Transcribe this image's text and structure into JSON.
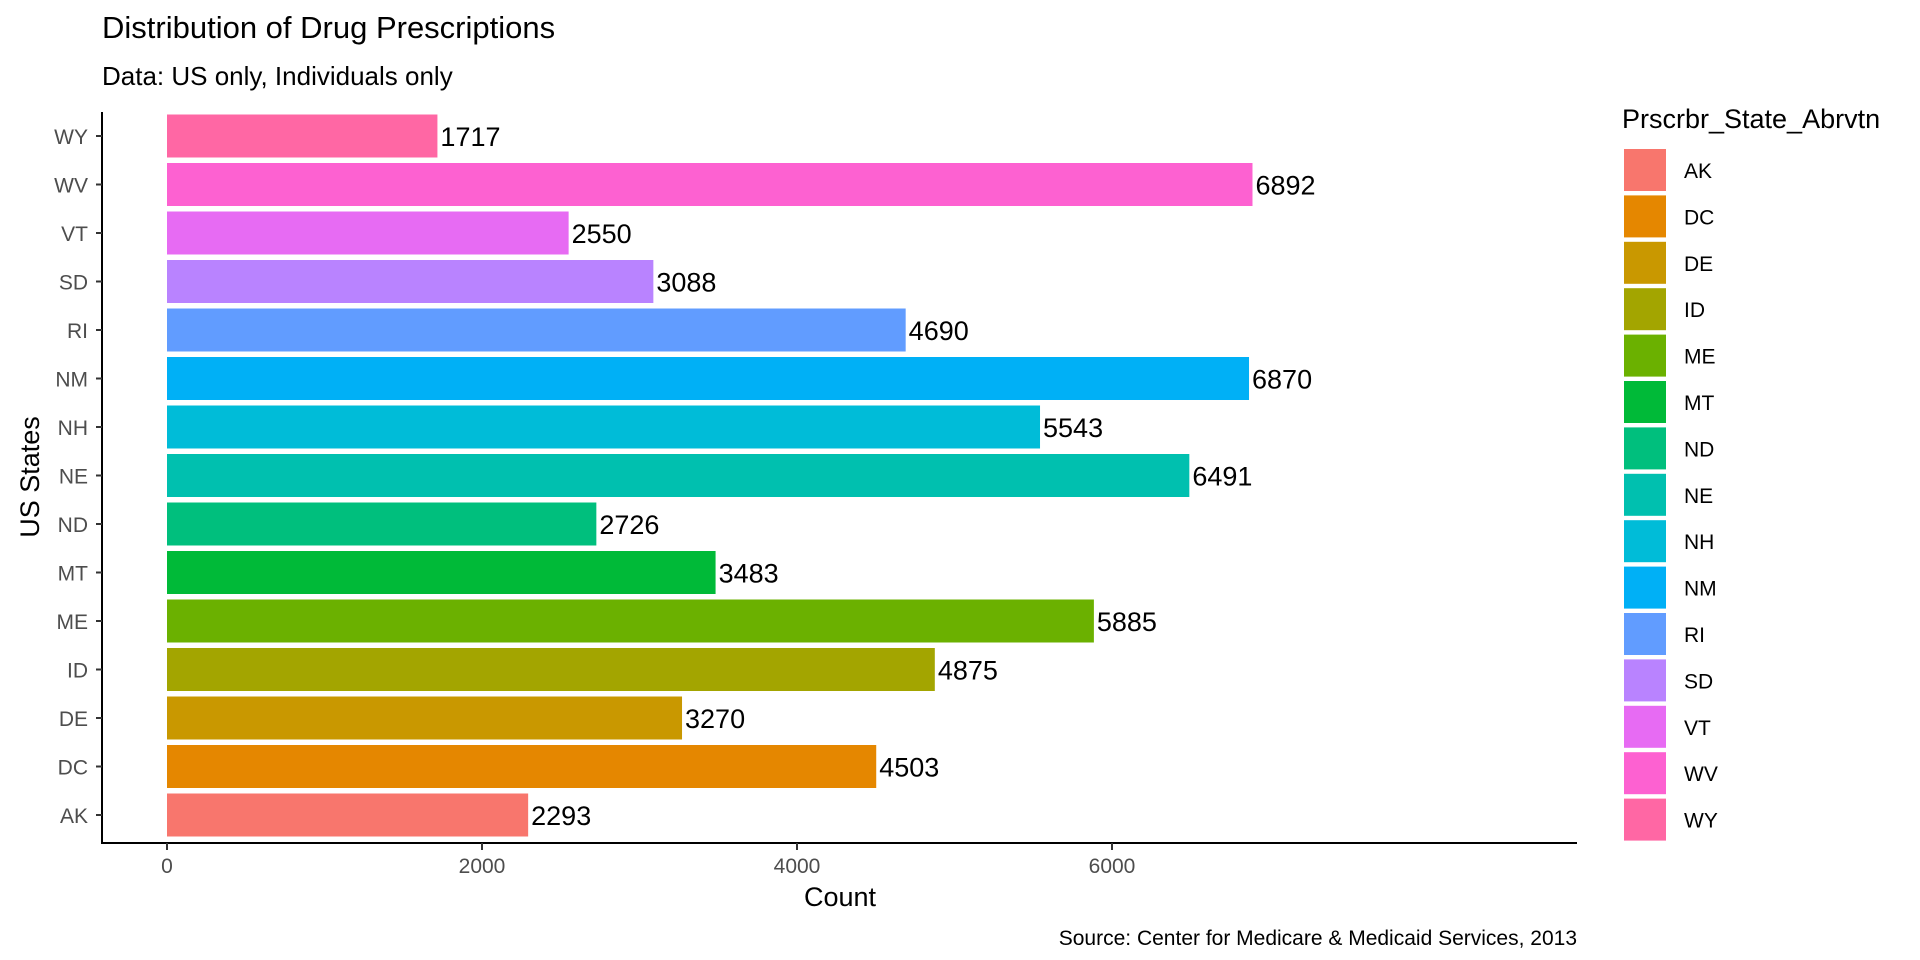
{
  "chart_data": {
    "type": "bar",
    "orientation": "horizontal",
    "title": "Distribution of Drug Prescriptions",
    "subtitle": "Data: US only, Individuals only",
    "caption": "Source: Center for Medicare & Medicaid Services, 2013",
    "xlabel": "Count",
    "ylabel": "US States",
    "xlim": [
      0,
      7200
    ],
    "x_ticks": [
      0,
      2000,
      4000,
      6000
    ],
    "grid": false,
    "legend_position": "right",
    "categories": [
      "AK",
      "DC",
      "DE",
      "ID",
      "ME",
      "MT",
      "ND",
      "NE",
      "NH",
      "NM",
      "RI",
      "SD",
      "VT",
      "WV",
      "WY"
    ],
    "values": [
      2293,
      4503,
      3270,
      4875,
      5885,
      3483,
      2726,
      6491,
      5543,
      6870,
      4690,
      3088,
      2550,
      6892,
      1717
    ],
    "colors": [
      "#F8766D",
      "#E58700",
      "#C99800",
      "#A3A500",
      "#6BB100",
      "#00BA38",
      "#00BF7D",
      "#00C0AF",
      "#00BCD8",
      "#00B0F6",
      "#619CFF",
      "#B983FF",
      "#E76BF3",
      "#FD61D1",
      "#FF67A4"
    ],
    "legend": {
      "title": "Prscrbr_State_Abrvtn",
      "items": [
        "AK",
        "DC",
        "DE",
        "ID",
        "ME",
        "MT",
        "ND",
        "NE",
        "NH",
        "NM",
        "RI",
        "SD",
        "VT",
        "WV",
        "WY"
      ]
    }
  }
}
